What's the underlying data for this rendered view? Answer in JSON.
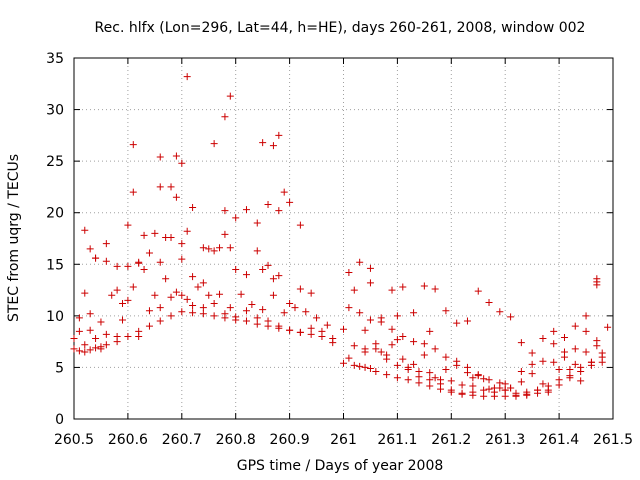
{
  "chart_data": {
    "type": "scatter",
    "title": "Rec. hlfx (Lon=296, Lat=44, h=HE), days 260-261, 2008, window 002",
    "xlabel": "GPS time / Days of year 2008",
    "ylabel": "STEC from uqrg / TECUs",
    "xlim": [
      260.5,
      261.5
    ],
    "ylim": [
      0,
      35
    ],
    "xticks": [
      260.5,
      260.6,
      260.7,
      260.8,
      260.9,
      261,
      261.1,
      261.2,
      261.3,
      261.4,
      261.5
    ],
    "xtick_labels": [
      "260.5",
      "260.6",
      "260.7",
      "260.8",
      "260.9",
      "261",
      "261.1",
      "261.2",
      "261.3",
      "261.4",
      "261.5"
    ],
    "yticks": [
      0,
      5,
      10,
      15,
      20,
      25,
      30,
      35
    ],
    "ytick_labels": [
      "0",
      "5",
      "10",
      "15",
      "20",
      "25",
      "30",
      "35"
    ],
    "grid": true,
    "marker": "+",
    "color": "#cc0000",
    "series": [
      {
        "name": "STEC",
        "x": [
          260.5,
          260.51,
          260.52,
          260.53,
          260.54,
          260.55,
          260.56,
          260.58,
          260.6,
          260.62,
          260.64,
          260.66,
          260.68,
          260.7,
          260.72,
          260.74,
          260.76,
          260.78,
          260.8,
          260.82,
          260.84,
          260.86,
          260.88,
          260.9,
          260.92,
          260.94,
          260.96,
          260.98,
          260.5,
          260.51,
          260.52,
          260.53,
          260.54,
          260.55,
          260.56,
          260.58,
          260.59,
          260.6,
          260.62,
          260.64,
          260.66,
          260.68,
          260.7,
          260.72,
          260.74,
          260.76,
          260.78,
          260.8,
          260.82,
          260.84,
          260.86,
          260.88,
          260.9,
          260.92,
          260.94,
          260.96,
          260.98,
          260.51,
          260.53,
          260.55,
          260.57,
          260.59,
          260.61,
          260.63,
          260.65,
          260.67,
          260.69,
          260.71,
          260.73,
          260.75,
          260.77,
          260.79,
          260.81,
          260.83,
          260.85,
          260.87,
          260.89,
          260.91,
          260.93,
          260.95,
          260.97,
          260.52,
          260.54,
          260.56,
          260.58,
          260.6,
          260.62,
          260.64,
          260.66,
          260.68,
          260.7,
          260.72,
          260.74,
          260.76,
          260.78,
          260.8,
          260.82,
          260.84,
          260.86,
          260.88,
          260.9,
          260.92,
          260.94,
          260.52,
          260.53,
          260.54,
          260.56,
          260.58,
          260.6,
          260.61,
          260.62,
          260.63,
          260.65,
          260.66,
          260.67,
          260.68,
          260.69,
          260.7,
          260.71,
          260.72,
          260.74,
          260.75,
          260.77,
          260.78,
          260.79,
          260.8,
          260.82,
          260.84,
          260.85,
          260.86,
          260.87,
          260.88,
          260.89,
          260.9,
          260.92,
          260.61,
          260.66,
          260.69,
          260.7,
          260.71,
          260.76,
          260.78,
          260.79,
          260.85,
          260.87,
          260.88,
          261.0,
          261.02,
          261.04,
          261.06,
          261.08,
          261.1,
          261.12,
          261.14,
          261.16,
          261.18,
          261.2,
          261.22,
          261.24,
          261.26,
          261.28,
          261.3,
          261.32,
          261.34,
          261.36,
          261.38,
          261.4,
          261.42,
          261.44,
          261.46,
          261.48,
          261.0,
          261.02,
          261.04,
          261.06,
          261.08,
          261.1,
          261.12,
          261.14,
          261.16,
          261.18,
          261.2,
          261.22,
          261.24,
          261.26,
          261.28,
          261.3,
          261.32,
          261.34,
          261.36,
          261.38,
          261.4,
          261.42,
          261.44,
          261.46,
          261.48,
          261.01,
          261.03,
          261.05,
          261.07,
          261.09,
          261.11,
          261.13,
          261.15,
          261.17,
          261.19,
          261.21,
          261.23,
          261.25,
          261.27,
          261.29,
          261.31,
          261.33,
          261.35,
          261.37,
          261.39,
          261.41,
          261.43,
          261.45,
          261.47,
          261.01,
          261.03,
          261.05,
          261.07,
          261.09,
          261.11,
          261.13,
          261.15,
          261.17,
          261.19,
          261.21,
          261.23,
          261.25,
          261.27,
          261.29,
          261.31,
          261.33,
          261.35,
          261.37,
          261.39,
          261.41,
          261.43,
          261.45,
          261.47,
          261.01,
          261.03,
          261.05,
          261.07,
          261.09,
          261.11,
          261.13,
          261.15,
          261.17,
          261.19,
          261.21,
          261.23,
          261.25,
          261.27,
          261.29,
          261.31,
          261.33,
          261.35,
          261.37,
          261.39,
          261.41,
          261.43,
          261.45,
          261.47,
          261.02,
          261.04,
          261.06,
          261.08,
          261.1,
          261.12,
          261.14,
          261.16,
          261.18,
          261.2,
          261.22,
          261.24,
          261.26,
          261.28,
          261.3,
          261.32,
          261.34,
          261.36,
          261.38,
          261.4,
          261.42,
          261.44,
          261.46,
          261.48,
          261.47,
          261.47,
          261.49,
          261.1,
          261.16,
          261.24,
          261.3,
          261.04,
          261.05
        ],
        "y": [
          6.8,
          6.6,
          6.5,
          6.7,
          6.9,
          7.0,
          7.2,
          7.5,
          8.0,
          8.5,
          9.0,
          9.5,
          10.0,
          10.4,
          10.3,
          10.2,
          10.0,
          9.8,
          9.6,
          9.5,
          9.2,
          9.0,
          8.8,
          8.6,
          8.4,
          8.2,
          8.0,
          7.8,
          7.8,
          8.5,
          7.2,
          8.6,
          7.8,
          6.8,
          8.2,
          8.0,
          9.6,
          11.5,
          8.0,
          10.5,
          10.8,
          11.8,
          12.0,
          11.0,
          10.8,
          11.2,
          10.2,
          9.9,
          10.5,
          9.8,
          9.5,
          9.0,
          8.6,
          8.4,
          8.8,
          8.5,
          7.4,
          9.8,
          10.2,
          9.4,
          12.0,
          11.2,
          12.8,
          14.5,
          12.0,
          13.6,
          12.3,
          11.6,
          12.8,
          12.0,
          12.1,
          10.8,
          12.1,
          11.1,
          10.6,
          12.0,
          10.3,
          10.8,
          10.4,
          9.8,
          9.1,
          12.2,
          15.6,
          15.3,
          12.5,
          14.8,
          15.1,
          16.1,
          15.2,
          17.6,
          15.5,
          13.8,
          13.2,
          16.3,
          17.9,
          14.5,
          14.0,
          16.3,
          14.9,
          13.9,
          11.2,
          12.6,
          12.2,
          18.3,
          16.5,
          15.6,
          17.0,
          14.8,
          18.8,
          22.0,
          15.2,
          17.8,
          18.0,
          22.5,
          17.6,
          22.5,
          21.5,
          17.0,
          18.2,
          20.5,
          16.6,
          16.5,
          16.6,
          20.2,
          16.6,
          19.5,
          20.3,
          19.0,
          14.5,
          20.8,
          13.6,
          20.2,
          22.0,
          21.0,
          18.8,
          26.6,
          25.4,
          25.5,
          24.8,
          33.2,
          26.7,
          29.3,
          31.3,
          26.8,
          26.5,
          27.5,
          5.4,
          5.2,
          5.0,
          4.6,
          4.3,
          4.0,
          3.8,
          3.5,
          3.2,
          2.9,
          2.6,
          2.4,
          2.3,
          2.2,
          2.2,
          2.2,
          2.3,
          2.4,
          2.5,
          2.8,
          3.3,
          4.0,
          4.6,
          5.2,
          5.5,
          8.7,
          7.1,
          6.5,
          6.8,
          5.8,
          5.2,
          5.0,
          4.6,
          4.5,
          3.8,
          3.7,
          3.3,
          3.2,
          2.8,
          2.6,
          2.8,
          2.5,
          2.6,
          2.8,
          3.2,
          3.8,
          4.2,
          5.0,
          5.5,
          6.0,
          10.8,
          10.3,
          9.6,
          9.4,
          8.7,
          8.0,
          7.5,
          7.3,
          6.8,
          6.0,
          5.6,
          5.0,
          4.2,
          3.8,
          3.5,
          3.0,
          3.6,
          4.4,
          3.4,
          5.5,
          6.5,
          5.3,
          6.5,
          7.1,
          14.2,
          15.2,
          14.6,
          9.8,
          12.5,
          12.8,
          10.3,
          12.9,
          12.6,
          10.5,
          9.3,
          9.5,
          12.4,
          11.3,
          10.4,
          9.9,
          7.4,
          6.4,
          7.8,
          8.5,
          7.9,
          9.0,
          10.0,
          13.0,
          5.9,
          5.1,
          4.9,
          6.5,
          7.2,
          5.8,
          5.3,
          6.2,
          4.0,
          4.8,
          5.2,
          4.5,
          4.3,
          2.9,
          3.0,
          3.0,
          4.6,
          5.3,
          5.6,
          7.3,
          6.0,
          6.8,
          8.5,
          7.6,
          12.5,
          6.8,
          7.3,
          6.2,
          7.7,
          4.8,
          4.1,
          3.8,
          3.4,
          2.8,
          2.5,
          2.6,
          3.9,
          3.0,
          3.4,
          2.2,
          2.3,
          2.8,
          2.6,
          4.8,
          4.8,
          3.7,
          5.5,
          6.4,
          13.6,
          13.3,
          8.9,
          10.0,
          8.5,
          4.0,
          2.8,
          8.6,
          13.2
        ]
      }
    ]
  }
}
